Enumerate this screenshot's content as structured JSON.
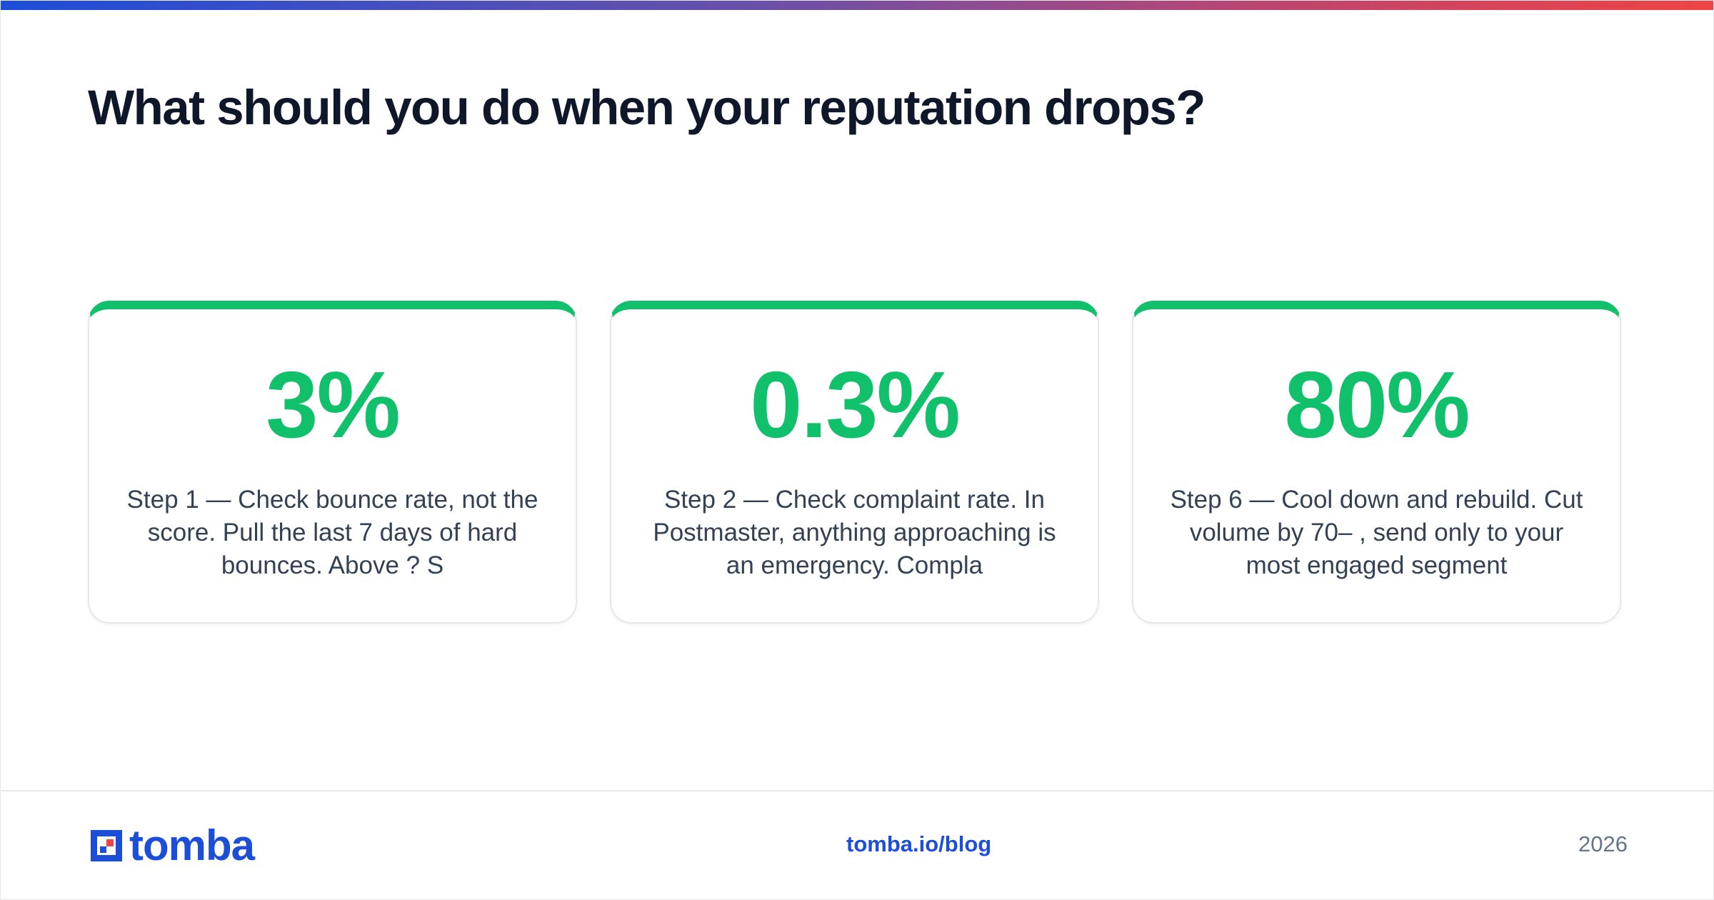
{
  "page_title": "What should you do when your reputation drops?",
  "colors": {
    "accent": "#10c06a",
    "brand": "#1d4ed8",
    "logo_red": "#ef4444",
    "title": "#0f172a",
    "body_text": "#334155",
    "muted": "#64748b"
  },
  "cards": [
    {
      "stat": "3%",
      "description": "Step 1 — Check bounce rate, not the score. Pull the last 7 days of hard bounces. Above ? S"
    },
    {
      "stat": "0.3%",
      "description": "Step 2 — Check complaint rate. In Postmaster, anything approaching is an emergency. Compla"
    },
    {
      "stat": "80%",
      "description": "Step 6 — Cool down and rebuild. Cut volume by 70– , send only to your most engaged segment"
    }
  ],
  "footer": {
    "logo_text": "tomba",
    "logo_icon": "tomba-logo-mark-icon",
    "link": "tomba.io/blog",
    "year": "2026"
  }
}
